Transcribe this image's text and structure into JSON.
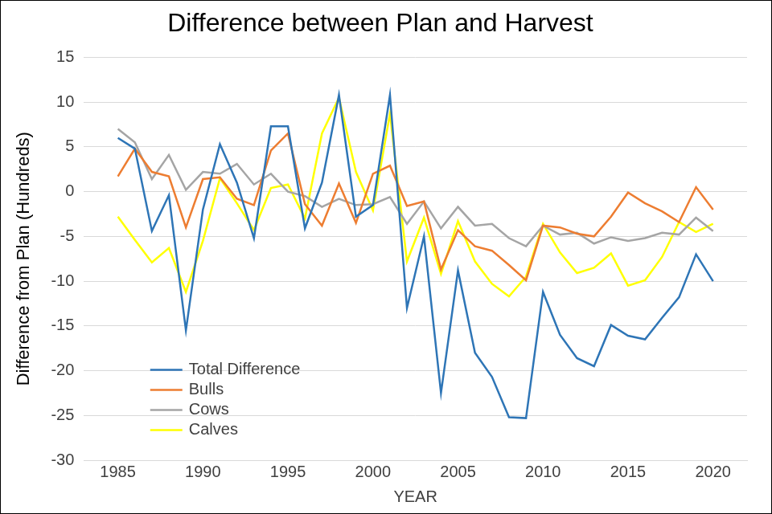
{
  "chart_data": {
    "type": "line",
    "title": "Difference between Plan and Harvest",
    "x_label": "YEAR",
    "y_label": "Difference from Plan (Hundreds)",
    "x": [
      1985,
      1986,
      1987,
      1988,
      1989,
      1990,
      1991,
      1992,
      1993,
      1994,
      1995,
      1996,
      1997,
      1998,
      1999,
      2000,
      2001,
      2002,
      2003,
      2004,
      2005,
      2006,
      2007,
      2008,
      2009,
      2010,
      2011,
      2012,
      2013,
      2014,
      2015,
      2016,
      2017,
      2018,
      2019,
      2020
    ],
    "series": [
      {
        "name": "Total Difference",
        "color": "#2e75b6",
        "values": [
          6,
          4.8,
          -4.4,
          -0.4,
          -15.5,
          -2,
          5.3,
          1,
          -5.2,
          7.3,
          7.3,
          -4.1,
          1,
          10.8,
          -2.8,
          -1.5,
          10.8,
          -13,
          -5,
          -22.5,
          -8.8,
          -18,
          -20.7,
          -25.2,
          -25.3,
          -11.2,
          -16,
          -18.6,
          -19.5,
          -14.9,
          -16.1,
          -16.5,
          -14.1,
          -11.8,
          -7,
          -10
        ]
      },
      {
        "name": "Bulls",
        "color": "#ed7d31",
        "values": [
          1.7,
          4.8,
          2.2,
          1.7,
          -4,
          1.4,
          1.6,
          -0.8,
          -1.5,
          4.6,
          6.5,
          -1.4,
          -3.8,
          0.9,
          -3.5,
          2,
          2.9,
          -1.6,
          -1.1,
          -8.7,
          -4.3,
          -6.1,
          -6.6,
          -8.2,
          -9.9,
          -3.8,
          -4,
          -4.7,
          -5,
          -2.8,
          -0.1,
          -1.3,
          -2.2,
          -3.4,
          0.5,
          -2
        ]
      },
      {
        "name": "Cows",
        "color": "#a5a5a5",
        "values": [
          7,
          5.5,
          1.4,
          4.1,
          0.2,
          2.2,
          2,
          3.1,
          0.8,
          2,
          0,
          -0.5,
          -1.7,
          -0.8,
          -1.5,
          -1.4,
          -0.6,
          -3.6,
          -1.1,
          -4.1,
          -1.7,
          -3.8,
          -3.6,
          -5.2,
          -6.1,
          -3.8,
          -4.8,
          -4.6,
          -5.8,
          -5.1,
          -5.5,
          -5.2,
          -4.6,
          -4.8,
          -2.9,
          -4.4
        ]
      },
      {
        "name": "Calves",
        "color": "#ffff00",
        "values": [
          -2.8,
          -5.4,
          -7.9,
          -6.3,
          -11.2,
          -5.5,
          1.5,
          -1.3,
          -4.3,
          0.4,
          0.8,
          -3,
          6.5,
          10.5,
          2.2,
          -2.1,
          8.7,
          -7.8,
          -2.9,
          -9.2,
          -3.3,
          -7.8,
          -10.3,
          -11.7,
          -9.5,
          -3.6,
          -6.8,
          -9.1,
          -8.5,
          -6.9,
          -10.5,
          -9.9,
          -7.3,
          -3.4,
          -4.5,
          -3.6
        ]
      }
    ],
    "xlim": [
      1983,
      2022
    ],
    "xticks": [
      1985,
      1990,
      1995,
      2000,
      2005,
      2010,
      2015,
      2020
    ],
    "ylim": [
      -30,
      15
    ],
    "yticks": [
      -30,
      -25,
      -20,
      -15,
      -10,
      -5,
      0,
      5,
      10,
      15
    ],
    "grid": true,
    "legend": "lower left"
  }
}
